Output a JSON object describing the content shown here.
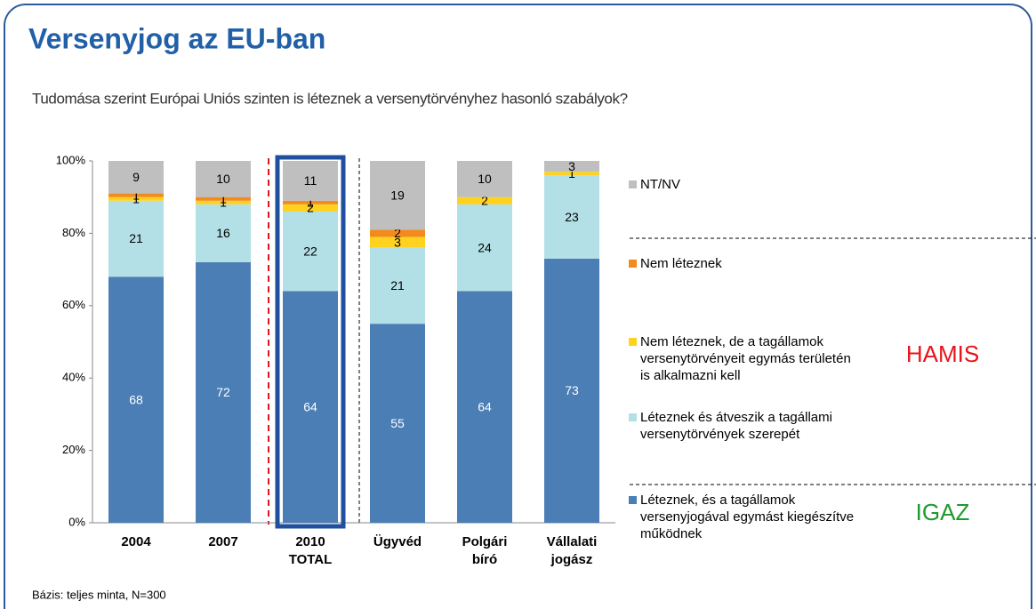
{
  "chart_data": {
    "type": "stacked_bar",
    "title": "Versenyjog az EU-ban",
    "subtitle": "Tudomása szerint Európai Uniós szinten is léteznek a versenytörvényhez hasonló szabályok?",
    "footnote": "Bázis: teljes minta, N=300",
    "annotations": [
      "HAMIS",
      "IGAZ"
    ],
    "categories": [
      "2004",
      "2007",
      "2010\nTOTAL",
      "Ügyvéd",
      "Polgári\nbíró",
      "Vállalati\njogász"
    ],
    "series": [
      {
        "name": "Léteznek, és a tagállamok versenyjogával egymást kiegészítve működnek",
        "color": "#4a7eb4",
        "values": [
          68,
          72,
          64,
          55,
          64,
          73
        ]
      },
      {
        "name": "Léteznek és átveszik a tagállami versenytörvények szerepét",
        "color": "#b3e0e6",
        "values": [
          21,
          16,
          22,
          21,
          24,
          23
        ]
      },
      {
        "name": "Nem léteznek, de a tagállamok versenytörvényeit egymás területén is alkalmazni kell",
        "color": "#ffd21f",
        "values": [
          1,
          1,
          2,
          3,
          2,
          1
        ]
      },
      {
        "name": "Nem léteznek",
        "color": "#f28a1e",
        "values": [
          1,
          1,
          1,
          2,
          0,
          0
        ]
      },
      {
        "name": "NT/NV",
        "color": "#bfbfbf",
        "values": [
          9,
          10,
          11,
          19,
          10,
          3
        ]
      }
    ],
    "ylim": [
      0,
      100
    ],
    "yticks": [
      {
        "value": 0,
        "label": "0%"
      },
      {
        "value": 20,
        "label": "20%"
      },
      {
        "value": 40,
        "label": "40%"
      },
      {
        "value": 60,
        "label": "60%"
      },
      {
        "value": 80,
        "label": "80%"
      },
      {
        "value": 100,
        "label": "100%"
      }
    ]
  }
}
